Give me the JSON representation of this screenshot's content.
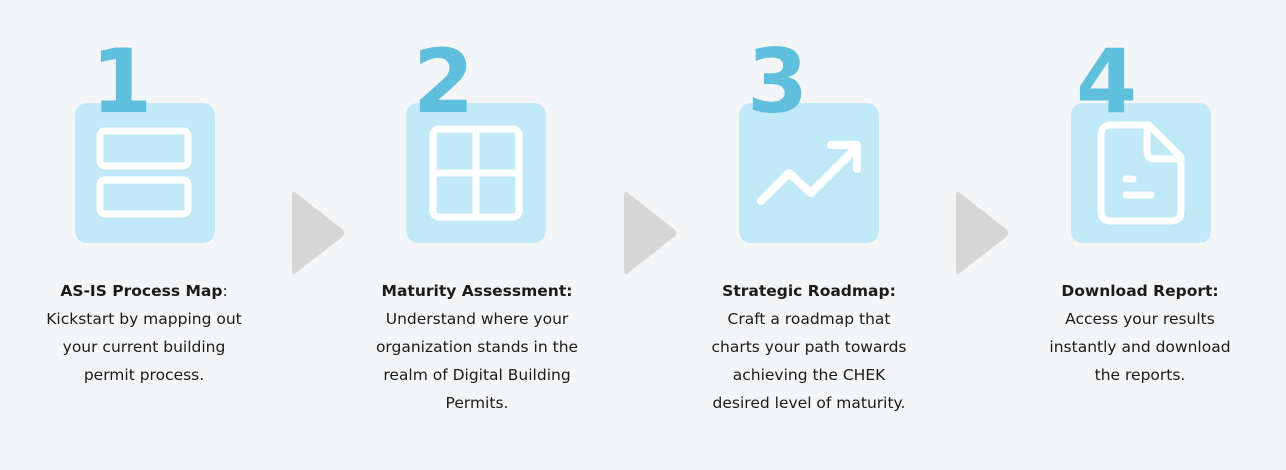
{
  "steps": [
    {
      "number": "1",
      "icon": "rows-layout-icon",
      "title": "AS-IS Process Map",
      "title_suffix": ":",
      "description": "Kickstart by mapping out\nyour current building\npermit process."
    },
    {
      "number": "2",
      "icon": "grid-icon",
      "title": "Maturity Assessment:",
      "title_suffix": "",
      "description": "Understand where your\norganization stands in the\nrealm of Digital Building\nPermits."
    },
    {
      "number": "3",
      "icon": "trend-up-icon",
      "title": "Strategic Roadmap:",
      "title_suffix": "",
      "description": "Craft a roadmap that\ncharts your path towards\nachieving the CHEK\ndesired level of maturity."
    },
    {
      "number": "4",
      "icon": "document-icon",
      "title": "Download Report:",
      "title_suffix": "",
      "description": "Access your results\ninstantly and download\nthe reports."
    }
  ],
  "colors": {
    "number": "#5fbfdc",
    "tile": "#c2e9f7",
    "icon_stroke": "#ffffff",
    "arrow": "#d6d6d6",
    "background": "#f4f5f7",
    "text": "#1b1b1b"
  }
}
